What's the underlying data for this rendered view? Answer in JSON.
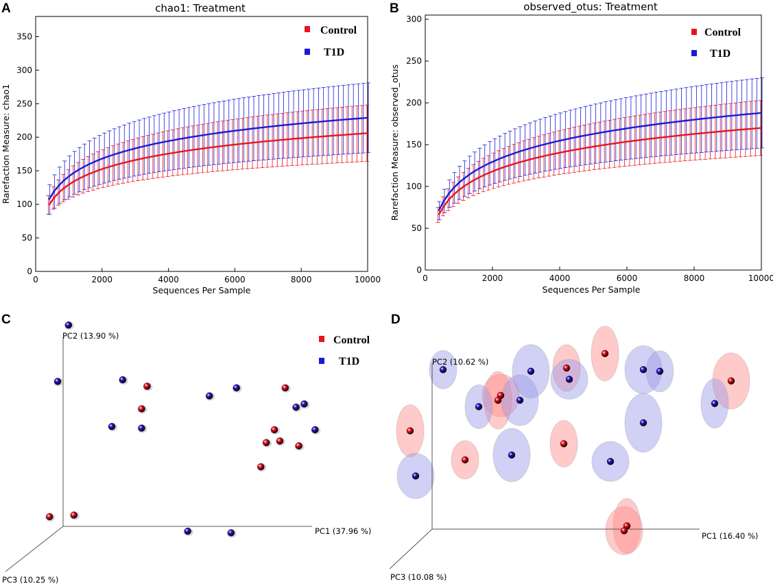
{
  "colors": {
    "control": "#e8141c",
    "t1d": "#1a1ad6",
    "control_ellipse": "#ff8a8a",
    "t1d_ellipse": "#9a9ae8"
  },
  "chart_data": [
    {
      "panel": "A",
      "type": "line",
      "title": "chao1: Treatment",
      "xlabel": "Sequences Per Sample",
      "ylabel": "Rarefaction Measure: chao1",
      "xlim": [
        0,
        10000
      ],
      "ylim": [
        0,
        380
      ],
      "xticks": [
        0,
        2000,
        4000,
        6000,
        8000,
        10000
      ],
      "yticks": [
        0,
        50,
        100,
        150,
        200,
        250,
        300,
        350
      ],
      "legend": {
        "position": "top-right",
        "entries": [
          "Control",
          "T1D"
        ]
      },
      "series": [
        {
          "name": "Control",
          "color": "control",
          "x0": 400,
          "x1": 10000,
          "y0": 99,
          "y1": 206,
          "err0": 14,
          "err1": 42
        },
        {
          "name": "T1D",
          "color": "t1d",
          "x0": 400,
          "x1": 10000,
          "y0": 107,
          "y1": 229,
          "err0": 22,
          "err1": 52
        }
      ]
    },
    {
      "panel": "B",
      "type": "line",
      "title": "observed_otus: Treatment",
      "xlabel": "Sequences Per Sample",
      "ylabel": "Rarefaction Measure: observed_otus",
      "xlim": [
        0,
        10000
      ],
      "ylim": [
        0,
        305
      ],
      "xticks": [
        0,
        2000,
        4000,
        6000,
        8000,
        10000
      ],
      "yticks": [
        0,
        50,
        100,
        150,
        200,
        250,
        300
      ],
      "legend": {
        "position": "top-right",
        "entries": [
          "Control",
          "T1D"
        ]
      },
      "series": [
        {
          "name": "Control",
          "color": "control",
          "x0": 400,
          "x1": 10000,
          "y0": 66,
          "y1": 170,
          "err0": 9,
          "err1": 33
        },
        {
          "name": "T1D",
          "color": "t1d",
          "x0": 400,
          "x1": 10000,
          "y0": 71,
          "y1": 188,
          "err0": 11,
          "err1": 42
        }
      ]
    },
    {
      "panel": "C",
      "type": "scatter",
      "title": "",
      "axes": {
        "pc1": "PC1 (37.96 %)",
        "pc2": "PC2 (13.90 %)",
        "pc3": "PC3 (10.25 %)"
      },
      "legend": {
        "position": "top-right",
        "entries": [
          "Control",
          "T1D"
        ]
      },
      "points": [
        {
          "group": "T1D",
          "pc1": 0.02,
          "pc2": 1.25
        },
        {
          "group": "T1D",
          "pc1": -0.02,
          "pc2": 0.9
        },
        {
          "group": "T1D",
          "pc1": 0.22,
          "pc2": 0.91
        },
        {
          "group": "Control",
          "pc1": 0.31,
          "pc2": 0.87
        },
        {
          "group": "Control",
          "pc1": 0.29,
          "pc2": 0.73
        },
        {
          "group": "T1D",
          "pc1": 0.18,
          "pc2": 0.62
        },
        {
          "group": "T1D",
          "pc1": 0.29,
          "pc2": 0.61
        },
        {
          "group": "T1D",
          "pc1": 0.54,
          "pc2": 0.81
        },
        {
          "group": "T1D",
          "pc1": 0.64,
          "pc2": 0.86
        },
        {
          "group": "Control",
          "pc1": 0.82,
          "pc2": 0.86
        },
        {
          "group": "T1D",
          "pc1": 0.86,
          "pc2": 0.74
        },
        {
          "group": "T1D",
          "pc1": 0.89,
          "pc2": 0.76
        },
        {
          "group": "T1D",
          "pc1": 0.93,
          "pc2": 0.6
        },
        {
          "group": "Control",
          "pc1": 0.78,
          "pc2": 0.6
        },
        {
          "group": "Control",
          "pc1": 0.8,
          "pc2": 0.53
        },
        {
          "group": "Control",
          "pc1": 0.75,
          "pc2": 0.52
        },
        {
          "group": "Control",
          "pc1": 0.87,
          "pc2": 0.5
        },
        {
          "group": "Control",
          "pc1": 0.73,
          "pc2": 0.37
        },
        {
          "group": "Control",
          "pc1": -0.05,
          "pc2": 0.06
        },
        {
          "group": "Control",
          "pc1": 0.04,
          "pc2": 0.07
        },
        {
          "group": "T1D",
          "pc1": 0.46,
          "pc2": -0.03
        },
        {
          "group": "T1D",
          "pc1": 0.62,
          "pc2": -0.04
        }
      ]
    },
    {
      "panel": "D",
      "type": "scatter",
      "title": "",
      "axes": {
        "pc1": "PC1 (16.40 %)",
        "pc2": "PC2 (10.62 %)",
        "pc3": "PC3 (10.08 %)"
      },
      "points": [
        {
          "group": "T1D",
          "pc1": 0.04,
          "pc2": 0.99
        },
        {
          "group": "T1D",
          "pc1": 0.36,
          "pc2": 0.98
        },
        {
          "group": "Control",
          "pc1": 0.49,
          "pc2": 1.0
        },
        {
          "group": "T1D",
          "pc1": 0.5,
          "pc2": 0.93
        },
        {
          "group": "Control",
          "pc1": 0.63,
          "pc2": 1.09
        },
        {
          "group": "T1D",
          "pc1": 0.77,
          "pc2": 0.99
        },
        {
          "group": "T1D",
          "pc1": 0.83,
          "pc2": 0.98
        },
        {
          "group": "Control",
          "pc1": 1.09,
          "pc2": 0.92
        },
        {
          "group": "T1D",
          "pc1": 1.03,
          "pc2": 0.78
        },
        {
          "group": "Control",
          "pc1": 0.25,
          "pc2": 0.83
        },
        {
          "group": "Control",
          "pc1": 0.24,
          "pc2": 0.8
        },
        {
          "group": "T1D",
          "pc1": 0.32,
          "pc2": 0.8
        },
        {
          "group": "T1D",
          "pc1": 0.17,
          "pc2": 0.76
        },
        {
          "group": "T1D",
          "pc1": 0.77,
          "pc2": 0.66
        },
        {
          "group": "Control",
          "pc1": -0.08,
          "pc2": 0.61
        },
        {
          "group": "T1D",
          "pc1": -0.06,
          "pc2": 0.33
        },
        {
          "group": "Control",
          "pc1": 0.12,
          "pc2": 0.43
        },
        {
          "group": "T1D",
          "pc1": 0.29,
          "pc2": 0.46
        },
        {
          "group": "Control",
          "pc1": 0.48,
          "pc2": 0.53
        },
        {
          "group": "T1D",
          "pc1": 0.65,
          "pc2": 0.42
        },
        {
          "group": "Control",
          "pc1": 0.71,
          "pc2": 0.02
        },
        {
          "group": "Control",
          "pc1": 0.7,
          "pc2": -0.01
        }
      ]
    }
  ],
  "panels": {
    "a": "A",
    "b": "B",
    "c": "C",
    "d": "D"
  }
}
